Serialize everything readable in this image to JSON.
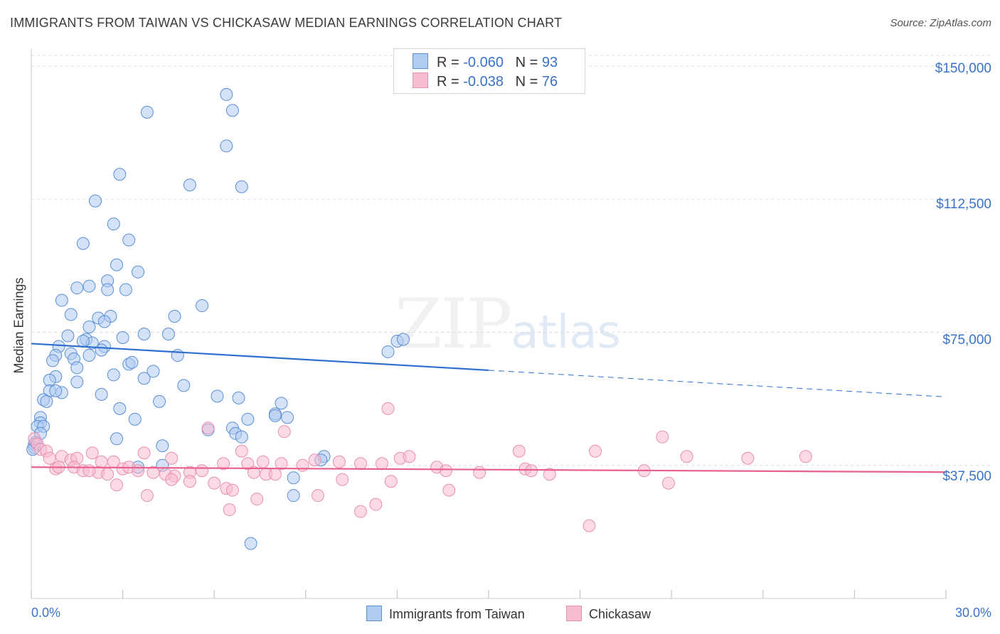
{
  "title": "IMMIGRANTS FROM TAIWAN VS CHICKASAW MEDIAN EARNINGS CORRELATION CHART",
  "source": "Source: ZipAtlas.com",
  "watermark": {
    "zip": "ZIP",
    "atlas": "atlas"
  },
  "legend": {
    "rows": [
      {
        "r_label": "R = ",
        "r_value": "-0.060",
        "n_label": "N = ",
        "n_value": "93"
      },
      {
        "r_label": "R = ",
        "r_value": "-0.038",
        "n_label": "N = ",
        "n_value": "76"
      }
    ]
  },
  "colors": {
    "taiwan_fill": "#aecbf0",
    "taiwan_stroke": "#5b8fd6",
    "taiwan_line": "#2f6fcf",
    "chickasaw_fill": "#f7bcd0",
    "chickasaw_stroke": "#e890b0",
    "chickasaw_line": "#e8608e",
    "tick_label": "#3a73c9",
    "grid": "#dddddd"
  },
  "chart_data": {
    "type": "scatter",
    "title": "IMMIGRANTS FROM TAIWAN VS CHICKASAW MEDIAN EARNINGS CORRELATION CHART",
    "xlabel": "",
    "ylabel": "Median Earnings",
    "xlim": [
      0,
      30
    ],
    "ylim": [
      0,
      155000
    ],
    "x_tick_labels": [
      "0.0%",
      "30.0%"
    ],
    "y_ticks": [
      37500,
      75000,
      112500,
      150000
    ],
    "y_tick_labels": [
      "$37,500",
      "$75,000",
      "$112,500",
      "$150,000"
    ],
    "grid": true,
    "legend_position": "top-center",
    "series": [
      {
        "name": "Immigrants from Taiwan",
        "r": -0.06,
        "n": 93,
        "trend": {
          "x0": 0,
          "y0": 71800,
          "x1": 15,
          "y1": 64300,
          "dashed_to_x": 30,
          "dashed_to_y": 56800
        },
        "points": [
          [
            3.8,
            137000
          ],
          [
            6.4,
            142000
          ],
          [
            6.6,
            137500
          ],
          [
            6.4,
            127500
          ],
          [
            2.9,
            119500
          ],
          [
            5.2,
            116500
          ],
          [
            6.9,
            116000
          ],
          [
            2.1,
            112000
          ],
          [
            2.7,
            105500
          ],
          [
            1.7,
            100000
          ],
          [
            3.2,
            101000
          ],
          [
            2.8,
            94000
          ],
          [
            3.5,
            92000
          ],
          [
            2.5,
            89500
          ],
          [
            1.9,
            88000
          ],
          [
            1.5,
            87500
          ],
          [
            2.5,
            87000
          ],
          [
            3.1,
            87000
          ],
          [
            1.0,
            84000
          ],
          [
            5.6,
            82500
          ],
          [
            1.3,
            80000
          ],
          [
            2.6,
            79500
          ],
          [
            2.2,
            79000
          ],
          [
            4.7,
            79500
          ],
          [
            2.4,
            78000
          ],
          [
            1.9,
            76500
          ],
          [
            3.7,
            74500
          ],
          [
            4.5,
            74500
          ],
          [
            1.2,
            74000
          ],
          [
            3.0,
            73500
          ],
          [
            1.8,
            73000
          ],
          [
            2.0,
            72000
          ],
          [
            1.7,
            72500
          ],
          [
            0.9,
            71000
          ],
          [
            2.4,
            71000
          ],
          [
            2.3,
            70000
          ],
          [
            12.0,
            72500
          ],
          [
            12.2,
            73000
          ],
          [
            1.3,
            69000
          ],
          [
            0.8,
            68500
          ],
          [
            1.9,
            68500
          ],
          [
            4.8,
            68500
          ],
          [
            11.7,
            69500
          ],
          [
            1.4,
            67500
          ],
          [
            0.7,
            67000
          ],
          [
            3.2,
            66000
          ],
          [
            3.3,
            66500
          ],
          [
            1.5,
            65000
          ],
          [
            4.0,
            64000
          ],
          [
            2.7,
            63000
          ],
          [
            0.8,
            62500
          ],
          [
            0.6,
            61500
          ],
          [
            1.5,
            61000
          ],
          [
            3.7,
            62000
          ],
          [
            5.0,
            60000
          ],
          [
            0.6,
            58500
          ],
          [
            1.0,
            58000
          ],
          [
            0.8,
            58500
          ],
          [
            2.3,
            57500
          ],
          [
            6.1,
            57000
          ],
          [
            6.8,
            56500
          ],
          [
            0.4,
            56000
          ],
          [
            0.5,
            55500
          ],
          [
            4.2,
            55500
          ],
          [
            8.2,
            55000
          ],
          [
            2.9,
            53500
          ],
          [
            8.0,
            52000
          ],
          [
            0.3,
            51000
          ],
          [
            3.4,
            50500
          ],
          [
            7.1,
            50500
          ],
          [
            8.0,
            51500
          ],
          [
            8.4,
            51000
          ],
          [
            0.3,
            49500
          ],
          [
            0.2,
            48500
          ],
          [
            0.4,
            48500
          ],
          [
            5.8,
            47500
          ],
          [
            6.6,
            48000
          ],
          [
            0.3,
            46500
          ],
          [
            6.7,
            46500
          ],
          [
            6.9,
            45500
          ],
          [
            2.8,
            45000
          ],
          [
            0.1,
            43500
          ],
          [
            4.3,
            43000
          ],
          [
            0.1,
            42500
          ],
          [
            9.6,
            40000
          ],
          [
            9.5,
            39000
          ],
          [
            4.3,
            37500
          ],
          [
            3.5,
            37000
          ],
          [
            8.6,
            34000
          ],
          [
            8.6,
            29000
          ],
          [
            7.2,
            15500
          ],
          [
            0.05,
            42000
          ],
          [
            0.15,
            44000
          ]
        ]
      },
      {
        "name": "Chickasaw",
        "r": -0.038,
        "n": 76,
        "trend": {
          "x0": 0,
          "y0": 37000,
          "x1": 30,
          "y1": 35600
        },
        "points": [
          [
            0.1,
            45000
          ],
          [
            0.2,
            43500
          ],
          [
            0.3,
            42000
          ],
          [
            0.5,
            41500
          ],
          [
            0.6,
            39500
          ],
          [
            1.0,
            40000
          ],
          [
            1.3,
            39000
          ],
          [
            2.0,
            41000
          ],
          [
            1.5,
            39500
          ],
          [
            2.3,
            38500
          ],
          [
            2.7,
            38500
          ],
          [
            3.7,
            41000
          ],
          [
            4.6,
            39500
          ],
          [
            5.8,
            48000
          ],
          [
            8.3,
            47000
          ],
          [
            11.7,
            53500
          ],
          [
            16.0,
            41500
          ],
          [
            18.5,
            41500
          ],
          [
            20.7,
            45500
          ],
          [
            21.5,
            40000
          ],
          [
            23.5,
            39500
          ],
          [
            25.4,
            40000
          ],
          [
            0.8,
            36500
          ],
          [
            1.4,
            37000
          ],
          [
            1.7,
            36000
          ],
          [
            2.2,
            35500
          ],
          [
            2.5,
            35000
          ],
          [
            3.0,
            36500
          ],
          [
            3.2,
            37000
          ],
          [
            3.5,
            36000
          ],
          [
            4.0,
            35500
          ],
          [
            4.4,
            35000
          ],
          [
            4.7,
            34500
          ],
          [
            5.2,
            35500
          ],
          [
            6.3,
            38000
          ],
          [
            6.9,
            41500
          ],
          [
            7.1,
            38000
          ],
          [
            7.6,
            38500
          ],
          [
            8.2,
            38000
          ],
          [
            8.9,
            37500
          ],
          [
            9.3,
            39000
          ],
          [
            10.1,
            38500
          ],
          [
            10.8,
            38000
          ],
          [
            11.5,
            38000
          ],
          [
            12.1,
            39500
          ],
          [
            12.4,
            40000
          ],
          [
            13.3,
            37000
          ],
          [
            13.6,
            36000
          ],
          [
            14.7,
            35500
          ],
          [
            16.2,
            36500
          ],
          [
            16.4,
            36000
          ],
          [
            17.0,
            35000
          ],
          [
            20.1,
            36000
          ],
          [
            7.7,
            35000
          ],
          [
            8.0,
            35000
          ],
          [
            7.3,
            35500
          ],
          [
            2.8,
            32000
          ],
          [
            4.6,
            33500
          ],
          [
            5.2,
            33000
          ],
          [
            6.0,
            32500
          ],
          [
            6.4,
            31000
          ],
          [
            6.6,
            30500
          ],
          [
            9.4,
            29000
          ],
          [
            10.2,
            33500
          ],
          [
            11.8,
            33000
          ],
          [
            13.7,
            30500
          ],
          [
            20.9,
            32500
          ],
          [
            3.8,
            29000
          ],
          [
            6.5,
            25000
          ],
          [
            7.4,
            28000
          ],
          [
            10.8,
            24500
          ],
          [
            11.3,
            26500
          ],
          [
            18.3,
            20500
          ],
          [
            0.9,
            37000
          ],
          [
            1.9,
            36000
          ],
          [
            5.6,
            36000
          ]
        ]
      }
    ]
  }
}
